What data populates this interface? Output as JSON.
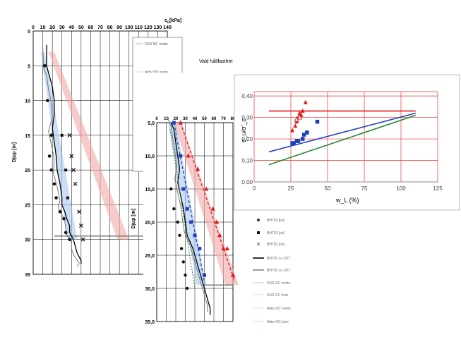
{
  "colors": {
    "red": "#e31a1c",
    "blue": "#1f3fbf",
    "green": "#1e8a2e",
    "pink_band": "#f4a9a9",
    "blue_band": "#a9c8ef",
    "gridline": "#000000",
    "red_grid": "#f03030"
  },
  "chart_data": [
    {
      "type": "scatter",
      "name": "depth_profile_back",
      "top_axis_label": "c",
      "top_axis_sub": "u",
      "top_axis_unit": "[kPa]",
      "ylabel": "Djup [m]",
      "x_ticks": [
        "0",
        "10",
        "20",
        "30",
        "40",
        "50",
        "60",
        "70",
        "80",
        "90",
        "100",
        "110",
        "120",
        "130",
        "140"
      ],
      "y_ticks": [
        "0",
        "5",
        "10",
        "15",
        "20",
        "25",
        "30",
        "35"
      ],
      "xlim": [
        0,
        140
      ],
      "ylim": [
        0,
        35
      ],
      "series": [
        {
          "name": "BH701 cu CPT",
          "kind": "line",
          "x": [
            14,
            14,
            16,
            20,
            22,
            22,
            20,
            22,
            24,
            25,
            28,
            30,
            30,
            33,
            35,
            38,
            38,
            42,
            44,
            46,
            50,
            50
          ],
          "y": [
            2,
            5,
            6,
            8,
            10,
            12,
            14,
            16,
            18,
            20,
            22,
            24,
            25,
            26,
            27,
            28,
            29,
            30,
            31,
            32,
            33,
            33.5
          ]
        },
        {
          "name": "circles",
          "kind": "marker",
          "x": [
            12,
            15,
            19,
            17,
            19,
            22,
            24,
            28,
            32,
            34,
            38
          ],
          "y": [
            5,
            10,
            15,
            18,
            20,
            22,
            24,
            26,
            27,
            29,
            30
          ]
        },
        {
          "name": "squares",
          "kind": "marker",
          "x": [
            30,
            34,
            36
          ],
          "y": [
            15,
            20,
            24
          ]
        },
        {
          "name": "crosses",
          "kind": "marker",
          "x": [
            38,
            40,
            42,
            44,
            48,
            50,
            52
          ],
          "y": [
            15,
            18,
            20,
            22,
            26,
            28,
            30
          ]
        }
      ],
      "legend": [
        "DSS NC nedre",
        "Aktiv NV nedre"
      ]
    },
    {
      "type": "scatter",
      "name": "depth_profile_front",
      "title": "Vald hållfasthet",
      "ylabel": "Djup [m]",
      "y_ticks": [
        "5,0",
        "10,0",
        "15,0",
        "20,0",
        "25,0",
        "30,0",
        "35,0"
      ],
      "x_ticks": [
        "0",
        "10",
        "20",
        "30",
        "40",
        "50",
        "60",
        "70",
        "80"
      ],
      "ylim": [
        5,
        35
      ],
      "xlim": [
        0,
        80
      ],
      "legend": [
        "BH703 [kv]",
        "BH703 [vb]",
        "BH702 [vb]",
        "BH701 cu CPT",
        "BH703 cu CPT",
        "DSS OC nedre",
        "DSS OC övre",
        "Aktiv OC nedre",
        "Aktiv OC övre"
      ],
      "series": [
        {
          "name": "BH701 cu CPT",
          "kind": "line",
          "x": [
            15,
            18,
            20,
            22,
            24,
            22,
            25,
            28,
            30,
            32,
            35,
            38,
            40,
            42,
            44,
            46,
            48,
            50,
            52,
            54,
            56,
            56
          ],
          "y": [
            5,
            6,
            8,
            10,
            12,
            14,
            16,
            18,
            20,
            22,
            23,
            24,
            25,
            26,
            27,
            28,
            29,
            30,
            31,
            32,
            33,
            34
          ]
        },
        {
          "name": "red triangles",
          "kind": "marker",
          "x": [
            25,
            33,
            43,
            52,
            59,
            63,
            66,
            70,
            74,
            80
          ],
          "y": [
            5,
            10,
            12,
            15,
            18,
            20,
            22,
            24,
            24,
            28
          ]
        },
        {
          "name": "blue squares",
          "kind": "marker",
          "x": [
            18,
            25,
            28,
            32,
            36,
            40,
            45,
            50
          ],
          "y": [
            5,
            10,
            15,
            18,
            20,
            22,
            24,
            28
          ]
        },
        {
          "name": "black circles",
          "kind": "marker",
          "x": [
            15,
            18,
            22,
            24,
            26,
            28,
            30,
            32
          ],
          "y": [
            15,
            18,
            20,
            22,
            24,
            26,
            28,
            30
          ]
        }
      ]
    },
    {
      "type": "scatter",
      "name": "ratio_plot",
      "ylabel": "c_u/σ'_c",
      "xlabel": "w_L (%)",
      "x_ticks": [
        "0",
        "25",
        "50",
        "75",
        "100",
        "125"
      ],
      "y_ticks": [
        "0,00",
        "0,10",
        "0,20",
        "0,30",
        "0,40"
      ],
      "xlim": [
        0,
        125
      ],
      "ylim": [
        0,
        0.42
      ],
      "series": [
        {
          "name": "red line",
          "kind": "line",
          "x": [
            10,
            110
          ],
          "y": [
            0.33,
            0.33
          ]
        },
        {
          "name": "blue line",
          "kind": "line",
          "x": [
            10,
            110
          ],
          "y": [
            0.14,
            0.32
          ]
        },
        {
          "name": "green line",
          "kind": "line",
          "x": [
            10,
            110
          ],
          "y": [
            0.08,
            0.31
          ]
        },
        {
          "name": "red triangles",
          "kind": "marker",
          "x": [
            26,
            28,
            29,
            30,
            31,
            32,
            33,
            35
          ],
          "y": [
            0.24,
            0.26,
            0.28,
            0.3,
            0.32,
            0.31,
            0.33,
            0.37
          ]
        },
        {
          "name": "blue squares",
          "kind": "marker",
          "x": [
            26,
            27,
            29,
            30,
            33,
            34,
            36,
            43
          ],
          "y": [
            0.18,
            0.18,
            0.19,
            0.19,
            0.2,
            0.22,
            0.23,
            0.28
          ]
        },
        {
          "name": "hollow triangles",
          "kind": "marker",
          "x": [
            29,
            31
          ],
          "y": [
            0.29,
            0.3
          ]
        }
      ]
    }
  ]
}
